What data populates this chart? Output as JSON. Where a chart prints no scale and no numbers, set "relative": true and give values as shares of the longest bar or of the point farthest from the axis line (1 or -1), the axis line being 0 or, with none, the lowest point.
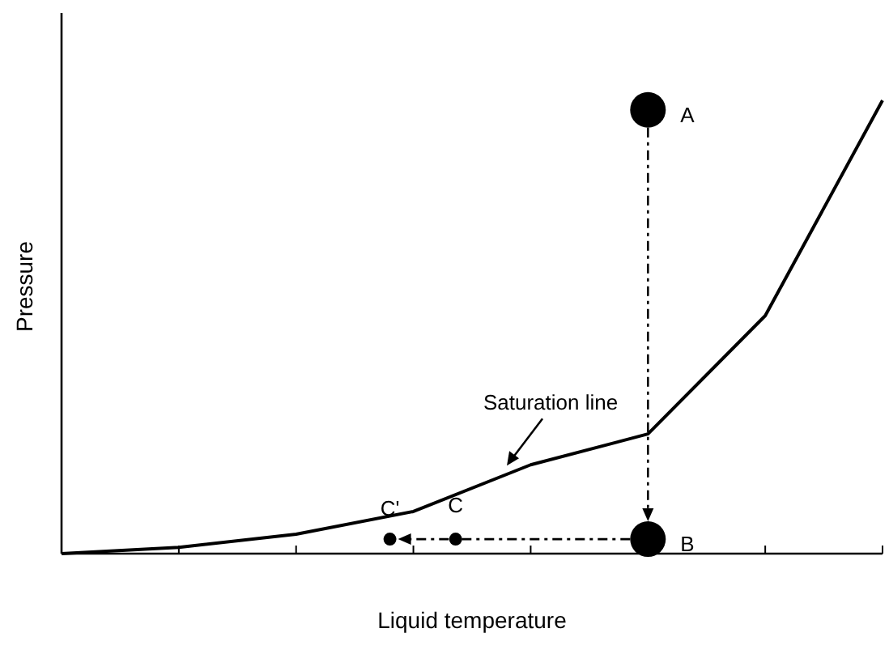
{
  "chart_data": {
    "type": "line",
    "relative": true,
    "xlabel": "Liquid temperature",
    "ylabel": "Pressure",
    "categories": [
      null,
      null,
      null,
      null,
      null,
      null,
      null,
      null
    ],
    "series": [
      {
        "color": "#000000",
        "values": [
          0,
          0.014,
          0.043,
          0.093,
          0.196,
          0.264,
          0.525,
          1
        ]
      }
    ],
    "annotations": [
      "A",
      "B",
      "C",
      "C'",
      "Saturation line"
    ]
  }
}
